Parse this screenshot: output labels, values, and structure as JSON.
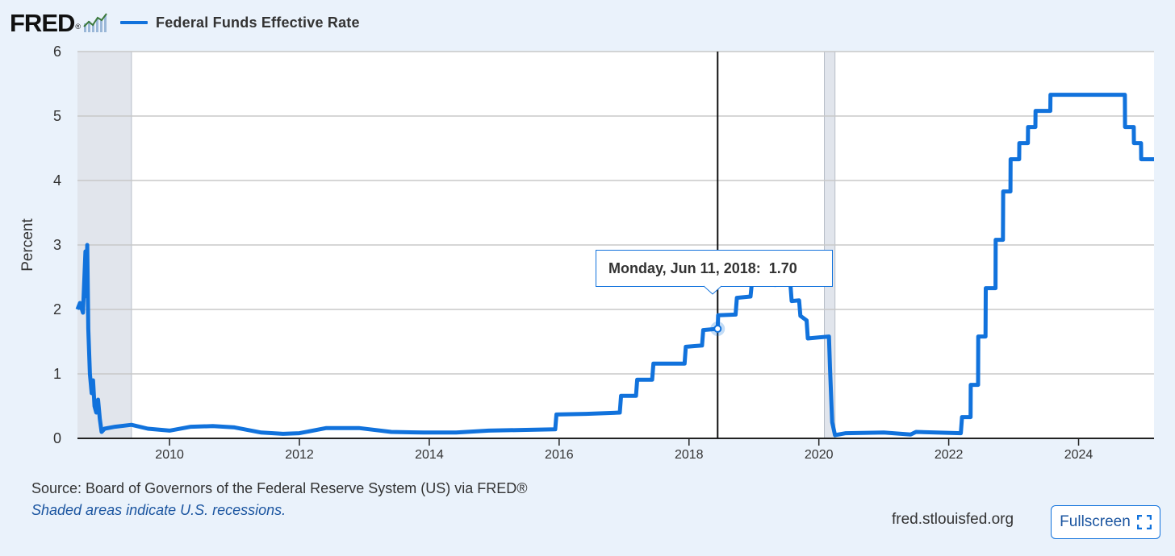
{
  "header": {
    "logo_text": "FRED",
    "logo_reg": "®",
    "legend_label": "Federal Funds Effective Rate",
    "series_color": "#1172dc"
  },
  "tooltip": {
    "date": "Monday, Jun 11, 2018:",
    "value": "1.70"
  },
  "footer": {
    "source": "Source: Board of Governors of the Federal Reserve System (US) via FRED®",
    "recession_note": "Shaded areas indicate U.S. recessions.",
    "site": "fred.stlouisfed.org",
    "fullscreen_label": "Fullscreen"
  },
  "chart_data": {
    "type": "line",
    "title": "",
    "xlabel": "",
    "ylabel": "Percent",
    "ylim": [
      0,
      6
    ],
    "xlim": [
      "2008-08-01",
      "2025-03-01"
    ],
    "yticks": [
      "0",
      "1",
      "2",
      "3",
      "4",
      "5",
      "6"
    ],
    "xticks": [
      "2010",
      "2012",
      "2014",
      "2016",
      "2018",
      "2020",
      "2022",
      "2024"
    ],
    "grid": true,
    "recessions": [
      {
        "start": "2008-08-01",
        "end": "2009-06-01"
      },
      {
        "start": "2020-02-01",
        "end": "2020-04-01"
      }
    ],
    "highlight": {
      "x": "2018-06-11",
      "y": 1.7
    },
    "series": [
      {
        "name": "Federal Funds Effective Rate",
        "color": "#1172dc",
        "points": [
          [
            "2008-08-01",
            2.0
          ],
          [
            "2008-08-15",
            2.1
          ],
          [
            "2008-09-01",
            1.95
          ],
          [
            "2008-09-15",
            2.9
          ],
          [
            "2008-09-20",
            2.2
          ],
          [
            "2008-09-25",
            3.0
          ],
          [
            "2008-10-01",
            1.7
          ],
          [
            "2008-10-10",
            1.0
          ],
          [
            "2008-10-20",
            0.7
          ],
          [
            "2008-10-28",
            0.9
          ],
          [
            "2008-11-05",
            0.5
          ],
          [
            "2008-11-15",
            0.4
          ],
          [
            "2008-11-25",
            0.6
          ],
          [
            "2008-12-05",
            0.3
          ],
          [
            "2008-12-15",
            0.1
          ],
          [
            "2009-01-01",
            0.15
          ],
          [
            "2009-03-01",
            0.18
          ],
          [
            "2009-06-01",
            0.21
          ],
          [
            "2009-09-01",
            0.15
          ],
          [
            "2010-01-01",
            0.12
          ],
          [
            "2010-05-01",
            0.18
          ],
          [
            "2010-09-01",
            0.19
          ],
          [
            "2011-01-01",
            0.17
          ],
          [
            "2011-06-01",
            0.09
          ],
          [
            "2011-10-01",
            0.07
          ],
          [
            "2012-01-01",
            0.08
          ],
          [
            "2012-06-01",
            0.16
          ],
          [
            "2012-12-01",
            0.16
          ],
          [
            "2013-06-01",
            0.1
          ],
          [
            "2013-12-01",
            0.09
          ],
          [
            "2014-06-01",
            0.09
          ],
          [
            "2014-12-01",
            0.12
          ],
          [
            "2015-06-01",
            0.13
          ],
          [
            "2015-12-10",
            0.14
          ],
          [
            "2015-12-17",
            0.37
          ],
          [
            "2016-06-01",
            0.38
          ],
          [
            "2016-12-08",
            0.4
          ],
          [
            "2016-12-15",
            0.66
          ],
          [
            "2017-03-09",
            0.66
          ],
          [
            "2017-03-16",
            0.91
          ],
          [
            "2017-06-08",
            0.91
          ],
          [
            "2017-06-15",
            1.16
          ],
          [
            "2017-12-07",
            1.16
          ],
          [
            "2017-12-14",
            1.42
          ],
          [
            "2018-03-15",
            1.44
          ],
          [
            "2018-03-22",
            1.68
          ],
          [
            "2018-06-11",
            1.7
          ],
          [
            "2018-06-14",
            1.91
          ],
          [
            "2018-09-20",
            1.92
          ],
          [
            "2018-09-27",
            2.18
          ],
          [
            "2018-12-13",
            2.2
          ],
          [
            "2018-12-20",
            2.4
          ],
          [
            "2019-05-01",
            2.38
          ],
          [
            "2019-07-25",
            2.4
          ],
          [
            "2019-08-01",
            2.13
          ],
          [
            "2019-09-12",
            2.14
          ],
          [
            "2019-09-19",
            1.9
          ],
          [
            "2019-10-24",
            1.83
          ],
          [
            "2019-10-31",
            1.55
          ],
          [
            "2020-02-27",
            1.58
          ],
          [
            "2020-03-04",
            1.09
          ],
          [
            "2020-03-16",
            0.25
          ],
          [
            "2020-04-01",
            0.05
          ],
          [
            "2020-06-01",
            0.08
          ],
          [
            "2021-01-01",
            0.09
          ],
          [
            "2021-06-01",
            0.06
          ],
          [
            "2021-07-01",
            0.1
          ],
          [
            "2022-03-10",
            0.08
          ],
          [
            "2022-03-17",
            0.33
          ],
          [
            "2022-05-04",
            0.33
          ],
          [
            "2022-05-05",
            0.83
          ],
          [
            "2022-06-15",
            0.83
          ],
          [
            "2022-06-16",
            1.58
          ],
          [
            "2022-07-27",
            1.58
          ],
          [
            "2022-07-28",
            2.33
          ],
          [
            "2022-09-21",
            2.33
          ],
          [
            "2022-09-22",
            3.08
          ],
          [
            "2022-11-02",
            3.08
          ],
          [
            "2022-11-03",
            3.83
          ],
          [
            "2022-12-14",
            3.83
          ],
          [
            "2022-12-15",
            4.33
          ],
          [
            "2023-02-01",
            4.33
          ],
          [
            "2023-02-02",
            4.58
          ],
          [
            "2023-03-22",
            4.58
          ],
          [
            "2023-03-23",
            4.83
          ],
          [
            "2023-05-03",
            4.83
          ],
          [
            "2023-05-04",
            5.08
          ],
          [
            "2023-07-26",
            5.08
          ],
          [
            "2023-07-27",
            5.33
          ],
          [
            "2024-09-18",
            5.33
          ],
          [
            "2024-09-19",
            4.83
          ],
          [
            "2024-11-07",
            4.83
          ],
          [
            "2024-11-08",
            4.58
          ],
          [
            "2024-12-18",
            4.58
          ],
          [
            "2024-12-19",
            4.33
          ],
          [
            "2025-03-01",
            4.33
          ]
        ]
      }
    ]
  }
}
